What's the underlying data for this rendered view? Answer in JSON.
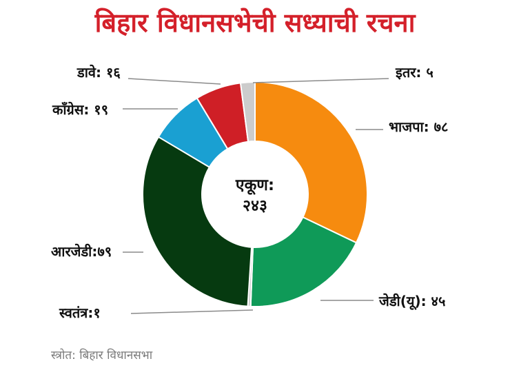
{
  "title": "बिहार विधानसभेची सध्याची रचना",
  "source": "स्त्रोत: बिहार विधानसभा",
  "center": {
    "line1": "एकूण:",
    "line2": "२४३"
  },
  "chart_data": {
    "type": "pie",
    "title": "बिहार विधानसभेची सध्याची रचना",
    "total": 243,
    "categories": [
      "भाजपा",
      "जेडी(यू)",
      "स्वतंत्र",
      "आरजेडी",
      "कॉंग्रेस",
      "डावे",
      "इतर"
    ],
    "values": [
      78,
      45,
      1,
      79,
      19,
      16,
      5
    ],
    "labels": [
      "भाजपा: ७८",
      "जेडी(यू): ४५",
      "स्वतंत्र:१",
      "आरजेडी:७९",
      "कॉंग्रेस: १९",
      "डावे: १६",
      "इतर: ५"
    ],
    "colors": [
      "#f68b0f",
      "#0f9a58",
      "#cfcfcf",
      "#063a10",
      "#1aa0d2",
      "#cf1f26",
      "#cccccc"
    ]
  }
}
